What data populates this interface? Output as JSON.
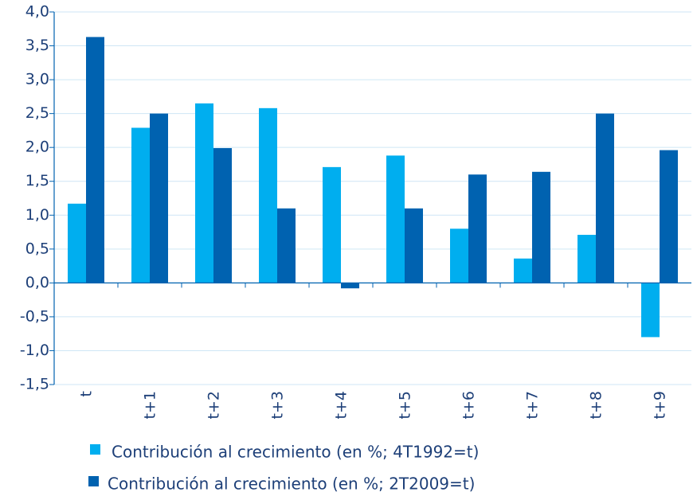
{
  "chart_data": {
    "type": "bar",
    "categories": [
      "t",
      "t+1",
      "t+2",
      "t+3",
      "t+4",
      "t+5",
      "t+6",
      "t+7",
      "t+8",
      "t+9"
    ],
    "series": [
      {
        "name": "Contribución al crecimiento (en %; 4T1992=t)",
        "color": "#00aeef",
        "values": [
          1.17,
          2.29,
          2.65,
          2.58,
          1.71,
          1.88,
          0.8,
          0.36,
          0.71,
          -0.8
        ]
      },
      {
        "name": "Contribución al crecimiento (en %; 2T2009=t)",
        "color": "#0062b0",
        "values": [
          3.63,
          2.5,
          1.99,
          1.1,
          -0.08,
          1.1,
          1.6,
          1.64,
          2.5,
          1.96
        ]
      }
    ],
    "ylim": [
      -1.5,
      4.0
    ],
    "yticks": [
      {
        "value": -1.5,
        "label": "-1,5"
      },
      {
        "value": -1.0,
        "label": "-1,0"
      },
      {
        "value": -0.5,
        "label": "-0,5"
      },
      {
        "value": 0,
        "label": "0,0"
      },
      {
        "value": 0.5,
        "label": "0,5"
      },
      {
        "value": 1.0,
        "label": "1,0"
      },
      {
        "value": 1.5,
        "label": "1,5"
      },
      {
        "value": 2.0,
        "label": "2,0"
      },
      {
        "value": 2.5,
        "label": "2,5"
      },
      {
        "value": 3.0,
        "label": "3,0"
      },
      {
        "value": 3.5,
        "label": "3,5"
      },
      {
        "value": 4.0,
        "label": "4,0"
      }
    ],
    "grid": true
  }
}
